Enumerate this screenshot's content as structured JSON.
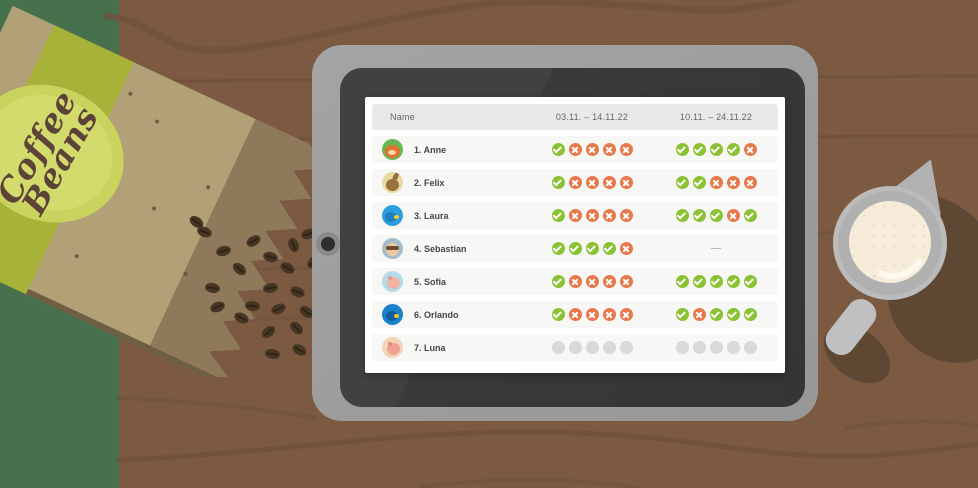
{
  "table": {
    "columns": [
      {
        "label": "Name"
      },
      {
        "label": "03.11. – 14.11.22"
      },
      {
        "label": "10.11. – 24.11.22"
      }
    ],
    "empty_marker": "—",
    "rows": [
      {
        "name": "1. Anne",
        "avatar": "fox",
        "periods": [
          [
            "check",
            "x",
            "x",
            "x",
            "x"
          ],
          [
            "check",
            "check",
            "check",
            "check",
            "x"
          ]
        ]
      },
      {
        "name": "2. Felix",
        "avatar": "rabbit",
        "periods": [
          [
            "check",
            "x",
            "x",
            "x",
            "x"
          ],
          [
            "check",
            "check",
            "x",
            "x",
            "x"
          ]
        ]
      },
      {
        "name": "3. Laura",
        "avatar": "bird-light",
        "periods": [
          [
            "check",
            "x",
            "x",
            "x",
            "x"
          ],
          [
            "check",
            "check",
            "check",
            "x",
            "check"
          ]
        ]
      },
      {
        "name": "4. Sebastian",
        "avatar": "boy",
        "periods": [
          [
            "check",
            "check",
            "check",
            "check",
            "x"
          ],
          [
            "dash"
          ]
        ]
      },
      {
        "name": "5. Sofia",
        "avatar": "pig-blue",
        "periods": [
          [
            "check",
            "x",
            "x",
            "x",
            "x"
          ],
          [
            "check",
            "check",
            "check",
            "check",
            "check"
          ]
        ]
      },
      {
        "name": "6. Orlando",
        "avatar": "bird-dark",
        "periods": [
          [
            "check",
            "x",
            "x",
            "x",
            "x"
          ],
          [
            "check",
            "x",
            "check",
            "check",
            "check"
          ]
        ]
      },
      {
        "name": "7. Luna",
        "avatar": "pig-peach",
        "periods": [
          [
            "dot",
            "dot",
            "dot",
            "dot",
            "dot"
          ],
          [
            "dot",
            "dot",
            "dot",
            "dot",
            "dot"
          ]
        ]
      }
    ]
  },
  "decor": {
    "bag_label_line1": "Coffee",
    "bag_label_line2": "Beans"
  },
  "colors": {
    "status_done": "#8bc234",
    "status_missed": "#e8794c",
    "status_pending": "#d9d9d9",
    "wood": "#7b5a41",
    "accent_strip": "#47704d",
    "screen": "#3a3a3a"
  }
}
